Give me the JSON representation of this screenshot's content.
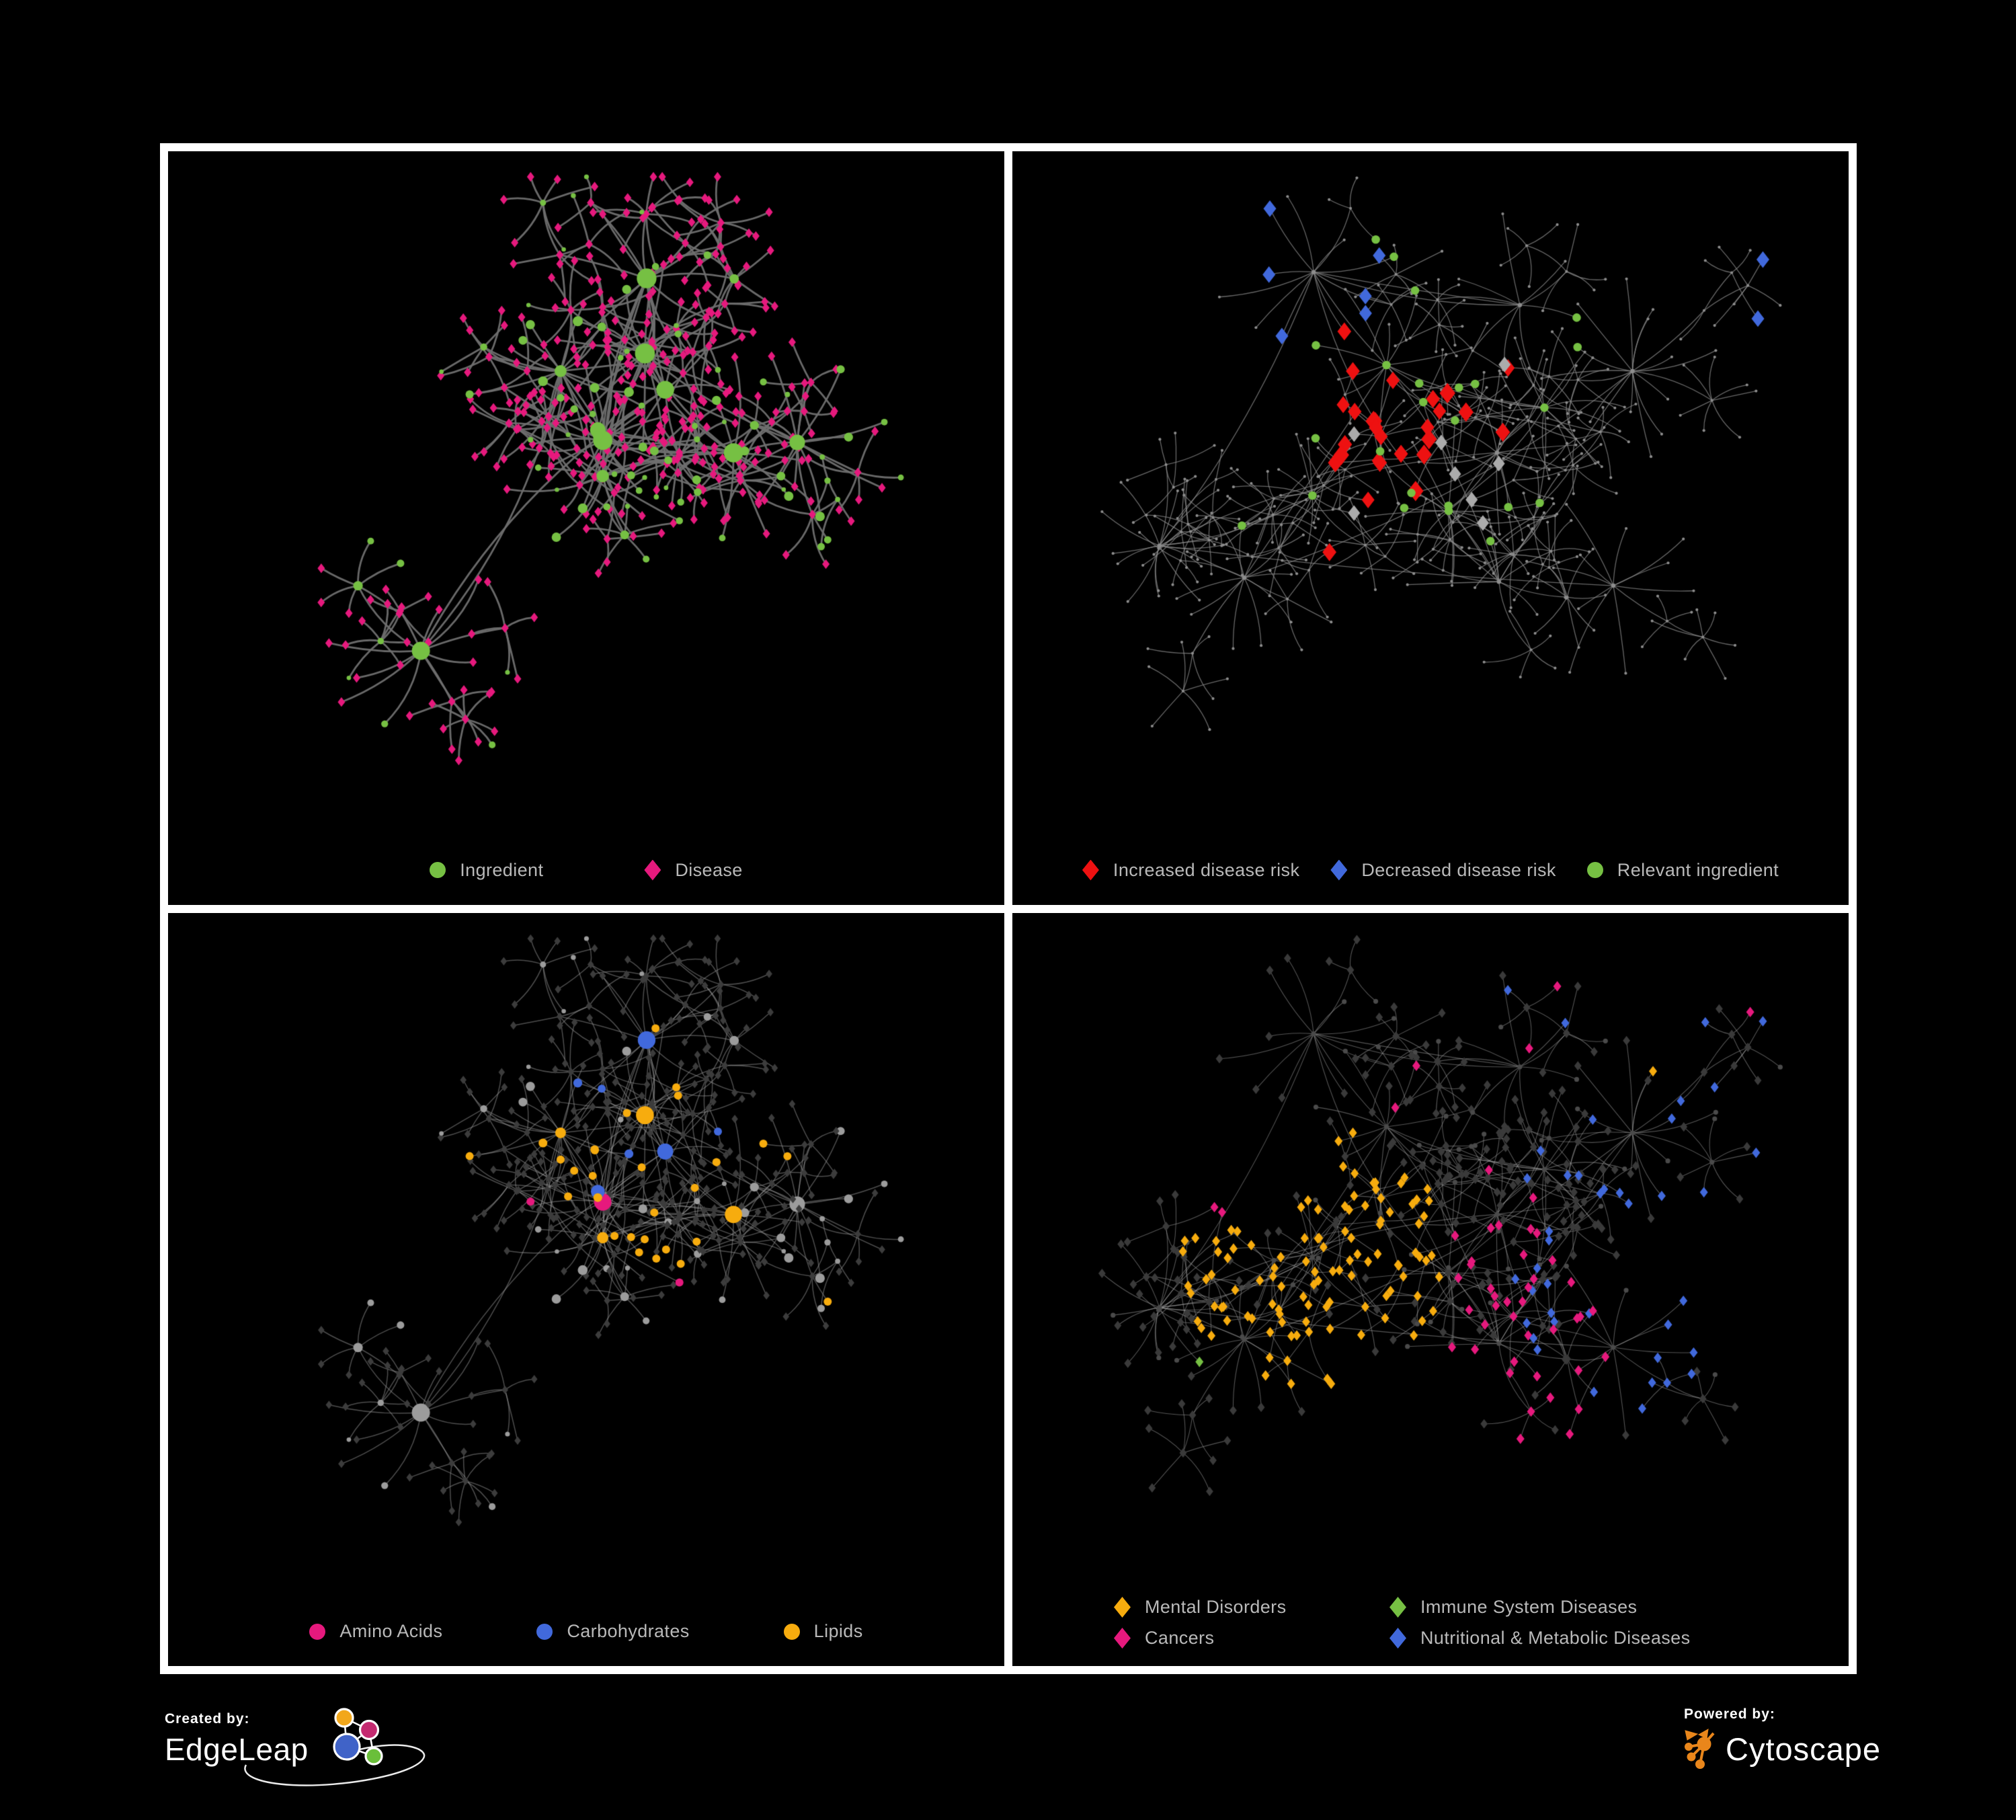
{
  "page": {
    "background": "#000000",
    "frame_color": "#ffffff"
  },
  "panels": [
    {
      "id": "ingredient-disease",
      "network": "A",
      "style": "ingredient_disease",
      "legend": {
        "layout": "row",
        "gap": 150,
        "items": [
          {
            "label": "Ingredient",
            "shape": "circle",
            "color": "#76c043"
          },
          {
            "label": "Disease",
            "shape": "diamond",
            "color": "#e6197d"
          }
        ]
      }
    },
    {
      "id": "disease-risk",
      "network": "B",
      "style": "risk",
      "legend": {
        "layout": "row",
        "gap": 46,
        "items": [
          {
            "label": "Increased disease risk",
            "shape": "diamond",
            "color": "#ee1111"
          },
          {
            "label": "Decreased disease risk",
            "shape": "diamond",
            "color": "#4169dc"
          },
          {
            "label": "Relevant ingredient",
            "shape": "circle",
            "color": "#76c043"
          }
        ]
      }
    },
    {
      "id": "nutrient-classes",
      "network": "A",
      "style": "nutrients",
      "legend": {
        "layout": "row",
        "gap": 140,
        "items": [
          {
            "label": "Amino Acids",
            "shape": "circle",
            "color": "#e6197d"
          },
          {
            "label": "Carbohydrates",
            "shape": "circle",
            "color": "#4169dc"
          },
          {
            "label": "Lipids",
            "shape": "circle",
            "color": "#f7ac0e"
          }
        ]
      }
    },
    {
      "id": "disease-classes",
      "network": "B",
      "style": "disease_classes",
      "legend": {
        "layout": "grid",
        "items": [
          {
            "label": "Mental Disorders",
            "shape": "diamond",
            "color": "#f7ac0e"
          },
          {
            "label": "Immune System Diseases",
            "shape": "diamond",
            "color": "#76c043"
          },
          {
            "label": "Cancers",
            "shape": "diamond",
            "color": "#e6197d"
          },
          {
            "label": "Nutritional & Metabolic Diseases",
            "shape": "diamond",
            "color": "#4169dc"
          }
        ]
      }
    }
  ],
  "networks": {
    "A": {
      "seed": 20412,
      "hubs": 10,
      "tendrils": 24,
      "cap": 470,
      "ingP1": 0.3,
      "ingP2": 0.14,
      "k1": [
        9,
        19
      ],
      "bp": [
        0.34,
        0.3,
        0.13
      ]
    },
    "B": {
      "seed": 98765,
      "hubs": 12,
      "tendrils": 42,
      "cap": 520,
      "ingP1": 0.22,
      "ingP2": 0.07,
      "k1": [
        8,
        17
      ],
      "bp": [
        0.34,
        0.3,
        0.15
      ]
    }
  },
  "styles": {
    "ingredient_disease": {
      "edge": "#6f6f6f",
      "edge_w": 2.8,
      "edge_a": 0.95,
      "ingredient": "#76c043",
      "disease": "#e6197d"
    },
    "risk": {
      "edge": "#8f8f8f",
      "edge_w": 1.3,
      "edge_a": 0.72,
      "dot": "#8d8d8d",
      "increased": "#ee1111",
      "decreased": "#4169dc",
      "neutral": "#ababab",
      "relevant": "#76c043",
      "counts": {
        "increased": 27,
        "decreased": 8,
        "neutral": 8,
        "relevant": 24
      }
    },
    "nutrients": {
      "edge": "#9a9a9a",
      "edge_w": 1.5,
      "edge_a": 0.5,
      "ingredient": "#9c9c9c",
      "disease": "#3c3c3c",
      "amino": "#e6197d",
      "carb": "#4169dc",
      "lipid": "#f7ac0e"
    },
    "disease_classes": {
      "edge": "#a8a8a8",
      "edge_w": 1.1,
      "edge_a": 0.5,
      "disease": "#3a3a3a",
      "ingredient": "#4a4a4a",
      "mental": "#f7ac0e",
      "immune": "#76c043",
      "cancer": "#e6197d",
      "nutritional": "#4169dc"
    }
  },
  "branding": {
    "created_by": "Created by:",
    "edgeleap": "EdgeLeap",
    "edgeleap_logo_colors": {
      "orange": "#f2a71b",
      "magenta": "#c42a70",
      "blue": "#4063c8",
      "green": "#6abf3a",
      "stroke": "#ffffff"
    },
    "powered_by": "Powered by:",
    "cytoscape": "Cytoscape",
    "cytoscape_logo_color": "#e9861b"
  }
}
